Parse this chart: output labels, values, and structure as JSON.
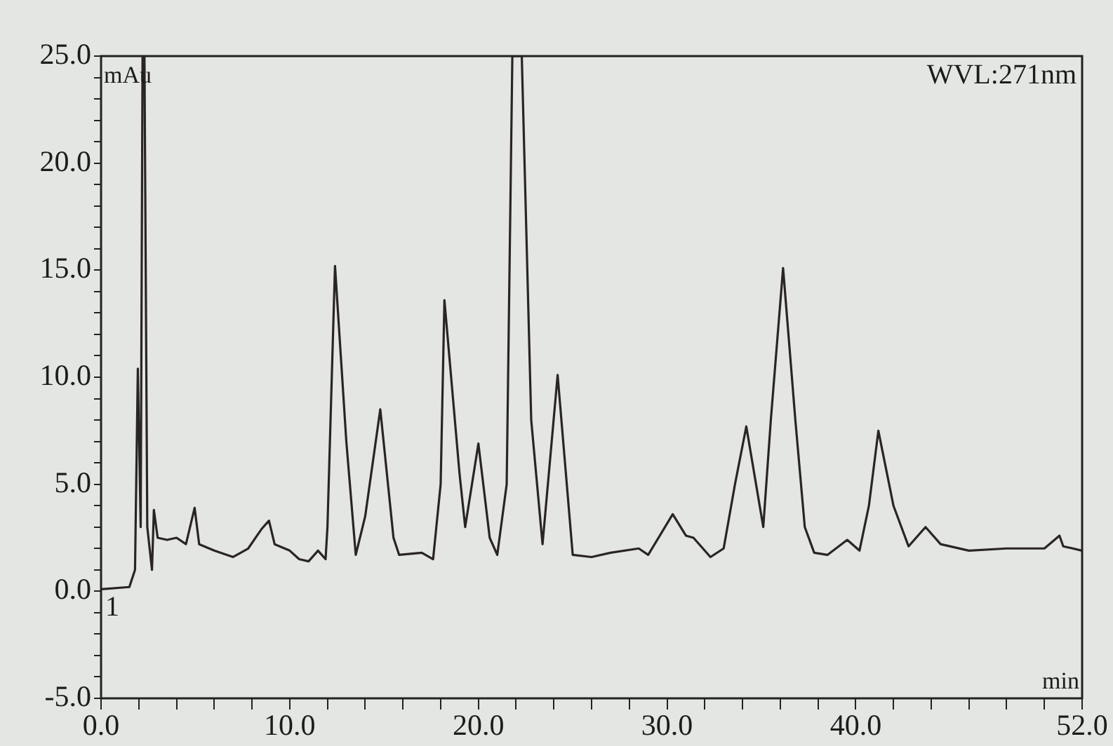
{
  "chart_data": {
    "type": "line",
    "xlabel": "min",
    "ylabel": "mAu",
    "annotations": [
      "WVL:271nm",
      "1"
    ],
    "series": [
      {
        "color": "#2a2426",
        "x": [
          0,
          1.5,
          1.8,
          1.95,
          2.1,
          2.2,
          2.3,
          2.45,
          2.7,
          2.8,
          3,
          3.5,
          4,
          4.5,
          4.96,
          5.2,
          6,
          7,
          7.8,
          8.5,
          8.9,
          9.2,
          10,
          10.5,
          11,
          11.5,
          11.9,
          12,
          12.4,
          13,
          13.5,
          14,
          14.8,
          15.5,
          15.8,
          17,
          17.6,
          18,
          18.2,
          19,
          19.3,
          20,
          20.6,
          21,
          21.5,
          21.8,
          22.3,
          22.8,
          23.4,
          24.2,
          25,
          26,
          27,
          28.5,
          29,
          30.3,
          31,
          31.4,
          32.3,
          33,
          33.6,
          34.2,
          35.1,
          35.5,
          36.15,
          36.8,
          37.3,
          37.8,
          38.5,
          39.55,
          40.2,
          40.7,
          41.2,
          42,
          42.8,
          43.7,
          44.5,
          46,
          48,
          50,
          50.8,
          51,
          52
        ],
        "values": [
          0.1,
          0.2,
          1.0,
          10.4,
          3.0,
          25,
          25,
          3.0,
          1.0,
          3.8,
          2.5,
          2.4,
          2.5,
          2.2,
          3.9,
          2.2,
          1.9,
          1.6,
          2.0,
          2.9,
          3.3,
          2.2,
          1.9,
          1.5,
          1.4,
          1.9,
          1.5,
          3,
          15.2,
          7,
          1.7,
          3.5,
          8.5,
          2.5,
          1.7,
          1.8,
          1.5,
          5,
          13.6,
          5.5,
          3.0,
          6.9,
          2.5,
          1.7,
          5,
          25,
          25,
          8,
          2.2,
          10.1,
          1.7,
          1.6,
          1.8,
          2.0,
          1.7,
          3.6,
          2.6,
          2.5,
          1.6,
          2.0,
          5,
          7.7,
          3.0,
          8,
          15.1,
          8,
          3,
          1.8,
          1.7,
          2.4,
          1.9,
          4,
          7.5,
          4,
          2.1,
          3.0,
          2.2,
          1.9,
          2.0,
          2.0,
          2.6,
          2.1,
          1.9
        ]
      }
    ],
    "xlim": [
      0,
      52
    ],
    "xticks": [
      {
        "value": 0,
        "label": "0.0"
      },
      {
        "value": 2,
        "label": null
      },
      {
        "value": 4,
        "label": null
      },
      {
        "value": 6,
        "label": null
      },
      {
        "value": 8,
        "label": null
      },
      {
        "value": 10,
        "label": "10.0"
      },
      {
        "value": 12,
        "label": null
      },
      {
        "value": 14,
        "label": null
      },
      {
        "value": 16,
        "label": null
      },
      {
        "value": 18,
        "label": null
      },
      {
        "value": 20,
        "label": "20.0"
      },
      {
        "value": 22,
        "label": null
      },
      {
        "value": 24,
        "label": null
      },
      {
        "value": 26,
        "label": null
      },
      {
        "value": 28,
        "label": null
      },
      {
        "value": 30,
        "label": "30.0"
      },
      {
        "value": 32,
        "label": null
      },
      {
        "value": 34,
        "label": null
      },
      {
        "value": 36,
        "label": null
      },
      {
        "value": 38,
        "label": null
      },
      {
        "value": 40,
        "label": "40.0"
      },
      {
        "value": 42,
        "label": null
      },
      {
        "value": 44,
        "label": null
      },
      {
        "value": 46,
        "label": null
      },
      {
        "value": 48,
        "label": null
      },
      {
        "value": 50,
        "label": null
      },
      {
        "value": 52,
        "label": "52.0"
      }
    ],
    "ylim": [
      -5,
      25
    ],
    "yticks": [
      {
        "value": -5,
        "label": "-5.0"
      },
      {
        "value": -4,
        "label": null
      },
      {
        "value": -3,
        "label": null
      },
      {
        "value": -2,
        "label": null
      },
      {
        "value": -1,
        "label": null
      },
      {
        "value": 0,
        "label": "0.0"
      },
      {
        "value": 1,
        "label": null
      },
      {
        "value": 2,
        "label": null
      },
      {
        "value": 3,
        "label": null
      },
      {
        "value": 4,
        "label": null
      },
      {
        "value": 5,
        "label": "5.0"
      },
      {
        "value": 6,
        "label": null
      },
      {
        "value": 7,
        "label": null
      },
      {
        "value": 8,
        "label": null
      },
      {
        "value": 9,
        "label": null
      },
      {
        "value": 10,
        "label": "10.0"
      },
      {
        "value": 11,
        "label": null
      },
      {
        "value": 12,
        "label": null
      },
      {
        "value": 13,
        "label": null
      },
      {
        "value": 14,
        "label": null
      },
      {
        "value": 15,
        "label": "15.0"
      },
      {
        "value": 16,
        "label": null
      },
      {
        "value": 17,
        "label": null
      },
      {
        "value": 18,
        "label": null
      },
      {
        "value": 19,
        "label": null
      },
      {
        "value": 20,
        "label": "20.0"
      },
      {
        "value": 21,
        "label": null
      },
      {
        "value": 22,
        "label": null
      },
      {
        "value": 23,
        "label": null
      },
      {
        "value": 24,
        "label": null
      },
      {
        "value": 25,
        "label": "25.0"
      }
    ],
    "grid": false,
    "legend": false,
    "marker": "none",
    "line_style": "solid"
  }
}
